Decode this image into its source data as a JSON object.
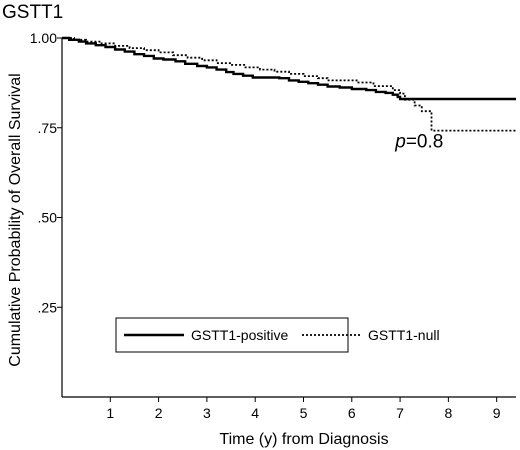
{
  "chart_data": {
    "type": "line",
    "title": "GSTT1",
    "xlabel": "Time (y) from Diagnosis",
    "ylabel": "Cumulative Probability of Overall Survival",
    "xlim": [
      0,
      9.4
    ],
    "ylim": [
      0,
      1
    ],
    "x_ticks": [
      "1",
      "2",
      "3",
      "4",
      "5",
      "6",
      "7",
      "8",
      "9"
    ],
    "y_ticks": [
      ".25",
      ".50",
      ".75",
      "1.00"
    ],
    "y_tick_values": [
      0.25,
      0.5,
      0.75,
      1.0
    ],
    "grid": false,
    "legend_position": "lower-center",
    "annotation": {
      "italic": "p",
      "text": "=0.8",
      "x": 6.9,
      "y": 0.695
    },
    "series": [
      {
        "name": "GSTT1-positive",
        "style": "solid",
        "color": "#000000",
        "points": [
          [
            0,
            1.0
          ],
          [
            0.15,
            0.995
          ],
          [
            0.35,
            0.99
          ],
          [
            0.5,
            0.985
          ],
          [
            0.7,
            0.98
          ],
          [
            0.9,
            0.975
          ],
          [
            1.1,
            0.968
          ],
          [
            1.3,
            0.962
          ],
          [
            1.5,
            0.955
          ],
          [
            1.7,
            0.95
          ],
          [
            1.9,
            0.943
          ],
          [
            2.1,
            0.94
          ],
          [
            2.35,
            0.935
          ],
          [
            2.55,
            0.928
          ],
          [
            2.8,
            0.922
          ],
          [
            3.0,
            0.918
          ],
          [
            3.2,
            0.912
          ],
          [
            3.4,
            0.905
          ],
          [
            3.55,
            0.9
          ],
          [
            3.75,
            0.895
          ],
          [
            3.95,
            0.89
          ],
          [
            4.5,
            0.888
          ],
          [
            4.7,
            0.882
          ],
          [
            4.9,
            0.878
          ],
          [
            5.1,
            0.874
          ],
          [
            5.3,
            0.87
          ],
          [
            5.5,
            0.865
          ],
          [
            5.75,
            0.862
          ],
          [
            6.0,
            0.858
          ],
          [
            6.3,
            0.855
          ],
          [
            6.5,
            0.85
          ],
          [
            6.7,
            0.847
          ],
          [
            6.85,
            0.842
          ],
          [
            6.95,
            0.836
          ],
          [
            7.0,
            0.83
          ],
          [
            9.4,
            0.83
          ]
        ]
      },
      {
        "name": "GSTT1-null",
        "style": "dotted",
        "color": "#000000",
        "points": [
          [
            0,
            1.0
          ],
          [
            0.25,
            0.995
          ],
          [
            0.5,
            0.99
          ],
          [
            0.8,
            0.985
          ],
          [
            1.1,
            0.978
          ],
          [
            1.4,
            0.972
          ],
          [
            1.7,
            0.966
          ],
          [
            2.0,
            0.96
          ],
          [
            2.3,
            0.952
          ],
          [
            2.6,
            0.945
          ],
          [
            2.9,
            0.938
          ],
          [
            3.2,
            0.93
          ],
          [
            3.5,
            0.925
          ],
          [
            3.8,
            0.918
          ],
          [
            4.1,
            0.912
          ],
          [
            4.4,
            0.906
          ],
          [
            4.7,
            0.9
          ],
          [
            5.0,
            0.894
          ],
          [
            5.3,
            0.888
          ],
          [
            5.5,
            0.882
          ],
          [
            5.9,
            0.882
          ],
          [
            6.1,
            0.876
          ],
          [
            6.3,
            0.876
          ],
          [
            6.45,
            0.866
          ],
          [
            6.7,
            0.866
          ],
          [
            6.85,
            0.855
          ],
          [
            7.0,
            0.845
          ],
          [
            7.1,
            0.828
          ],
          [
            7.3,
            0.812
          ],
          [
            7.45,
            0.796
          ],
          [
            7.6,
            0.796
          ],
          [
            7.65,
            0.742
          ],
          [
            9.4,
            0.742
          ]
        ]
      }
    ]
  }
}
